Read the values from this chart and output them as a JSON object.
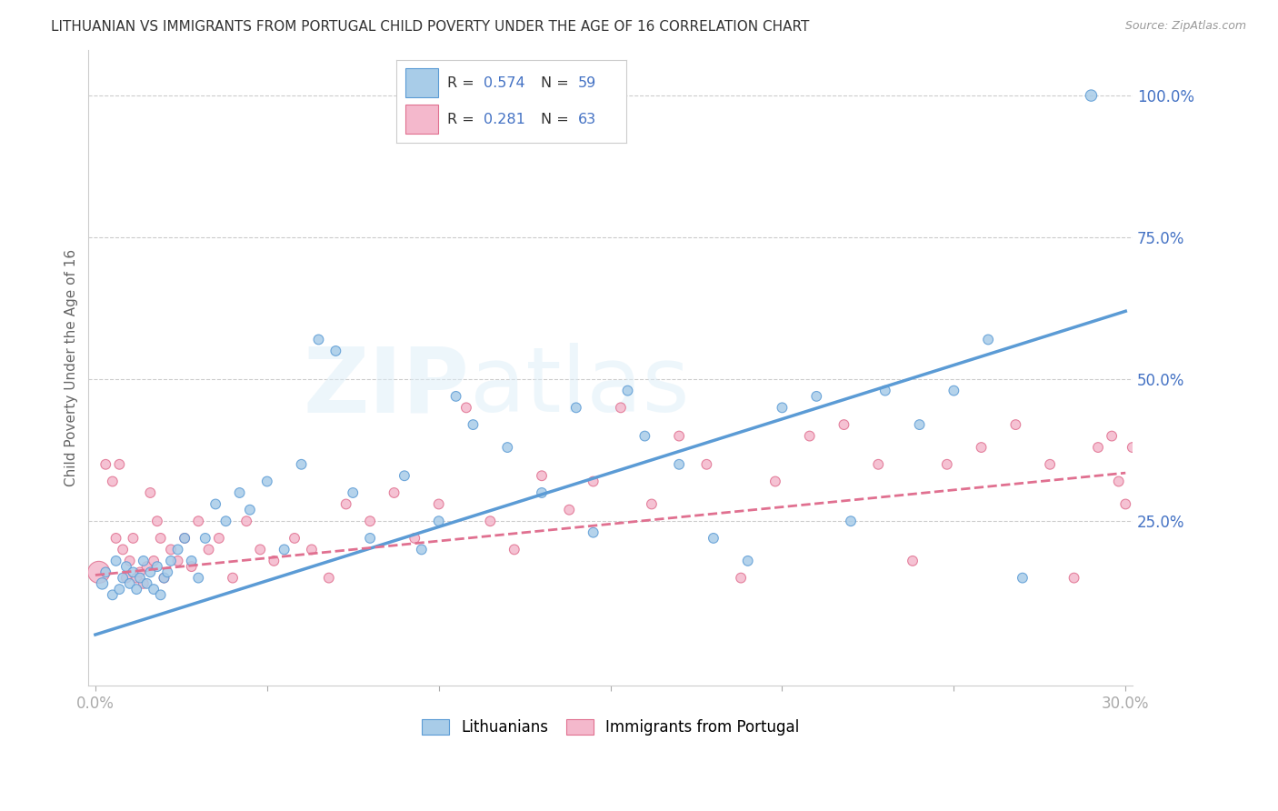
{
  "title": "LITHUANIAN VS IMMIGRANTS FROM PORTUGAL CHILD POVERTY UNDER THE AGE OF 16 CORRELATION CHART",
  "source": "Source: ZipAtlas.com",
  "ylabel": "Child Poverty Under the Age of 16",
  "color_blue_fill": "#a8cce8",
  "color_blue_edge": "#5b9bd5",
  "color_pink_fill": "#f4b8cc",
  "color_pink_edge": "#e07090",
  "color_axis": "#4472c4",
  "color_grid": "#cccccc",
  "watermark_text": "ZIPatlas",
  "legend1_R": "0.574",
  "legend1_N": "59",
  "legend2_R": "0.281",
  "legend2_N": "63",
  "xlim": [
    -0.002,
    0.302
  ],
  "ylim": [
    -0.04,
    1.08
  ],
  "x_ticks": [
    0.0,
    0.05,
    0.1,
    0.15,
    0.2,
    0.25,
    0.3
  ],
  "x_tick_labels": [
    "0.0%",
    "",
    "",
    "",
    "",
    "",
    "30.0%"
  ],
  "y_ticks_right": [
    0.25,
    0.5,
    0.75,
    1.0
  ],
  "y_tick_labels_right": [
    "25.0%",
    "50.0%",
    "75.0%",
    "100.0%"
  ],
  "trendline_blue": [
    0.0,
    0.3,
    0.05,
    0.62
  ],
  "trendline_pink": [
    0.0,
    0.3,
    0.155,
    0.335
  ],
  "scatter_blue_x": [
    0.002,
    0.003,
    0.005,
    0.006,
    0.007,
    0.008,
    0.009,
    0.01,
    0.011,
    0.012,
    0.013,
    0.014,
    0.015,
    0.016,
    0.017,
    0.018,
    0.019,
    0.02,
    0.021,
    0.022,
    0.024,
    0.026,
    0.028,
    0.03,
    0.032,
    0.035,
    0.038,
    0.042,
    0.045,
    0.05,
    0.055,
    0.06,
    0.065,
    0.07,
    0.075,
    0.08,
    0.09,
    0.095,
    0.1,
    0.105,
    0.11,
    0.12,
    0.13,
    0.14,
    0.145,
    0.155,
    0.16,
    0.17,
    0.18,
    0.19,
    0.2,
    0.21,
    0.22,
    0.23,
    0.24,
    0.25,
    0.26,
    0.27,
    0.29
  ],
  "scatter_blue_y": [
    0.14,
    0.16,
    0.12,
    0.18,
    0.13,
    0.15,
    0.17,
    0.14,
    0.16,
    0.13,
    0.15,
    0.18,
    0.14,
    0.16,
    0.13,
    0.17,
    0.12,
    0.15,
    0.16,
    0.18,
    0.2,
    0.22,
    0.18,
    0.15,
    0.22,
    0.28,
    0.25,
    0.3,
    0.27,
    0.32,
    0.2,
    0.35,
    0.57,
    0.55,
    0.3,
    0.22,
    0.33,
    0.2,
    0.25,
    0.47,
    0.42,
    0.38,
    0.3,
    0.45,
    0.23,
    0.48,
    0.4,
    0.35,
    0.22,
    0.18,
    0.45,
    0.47,
    0.25,
    0.48,
    0.42,
    0.48,
    0.57,
    0.15,
    1.0
  ],
  "scatter_blue_s": [
    80,
    60,
    60,
    60,
    60,
    60,
    60,
    60,
    60,
    60,
    60,
    60,
    60,
    60,
    60,
    60,
    60,
    60,
    60,
    60,
    60,
    60,
    60,
    60,
    60,
    60,
    60,
    60,
    60,
    60,
    60,
    60,
    60,
    60,
    60,
    60,
    60,
    60,
    60,
    60,
    60,
    60,
    60,
    60,
    60,
    60,
    60,
    60,
    60,
    60,
    60,
    60,
    60,
    60,
    60,
    60,
    60,
    60,
    80
  ],
  "scatter_pink_x": [
    0.001,
    0.003,
    0.005,
    0.006,
    0.007,
    0.008,
    0.009,
    0.01,
    0.011,
    0.012,
    0.013,
    0.014,
    0.015,
    0.016,
    0.017,
    0.018,
    0.019,
    0.02,
    0.022,
    0.024,
    0.026,
    0.028,
    0.03,
    0.033,
    0.036,
    0.04,
    0.044,
    0.048,
    0.052,
    0.058,
    0.063,
    0.068,
    0.073,
    0.08,
    0.087,
    0.093,
    0.1,
    0.108,
    0.115,
    0.122,
    0.13,
    0.138,
    0.145,
    0.153,
    0.162,
    0.17,
    0.178,
    0.188,
    0.198,
    0.208,
    0.218,
    0.228,
    0.238,
    0.248,
    0.258,
    0.268,
    0.278,
    0.285,
    0.292,
    0.296,
    0.298,
    0.3,
    0.302
  ],
  "scatter_pink_y": [
    0.16,
    0.35,
    0.32,
    0.22,
    0.35,
    0.2,
    0.15,
    0.18,
    0.22,
    0.15,
    0.16,
    0.14,
    0.17,
    0.3,
    0.18,
    0.25,
    0.22,
    0.15,
    0.2,
    0.18,
    0.22,
    0.17,
    0.25,
    0.2,
    0.22,
    0.15,
    0.25,
    0.2,
    0.18,
    0.22,
    0.2,
    0.15,
    0.28,
    0.25,
    0.3,
    0.22,
    0.28,
    0.45,
    0.25,
    0.2,
    0.33,
    0.27,
    0.32,
    0.45,
    0.28,
    0.4,
    0.35,
    0.15,
    0.32,
    0.4,
    0.42,
    0.35,
    0.18,
    0.35,
    0.38,
    0.42,
    0.35,
    0.15,
    0.38,
    0.4,
    0.32,
    0.28,
    0.38
  ],
  "scatter_pink_s": [
    300,
    60,
    60,
    60,
    60,
    60,
    60,
    60,
    60,
    60,
    60,
    60,
    60,
    60,
    60,
    60,
    60,
    60,
    60,
    60,
    60,
    60,
    60,
    60,
    60,
    60,
    60,
    60,
    60,
    60,
    60,
    60,
    60,
    60,
    60,
    60,
    60,
    60,
    60,
    60,
    60,
    60,
    60,
    60,
    60,
    60,
    60,
    60,
    60,
    60,
    60,
    60,
    60,
    60,
    60,
    60,
    60,
    60,
    60,
    60,
    60,
    60,
    60
  ]
}
